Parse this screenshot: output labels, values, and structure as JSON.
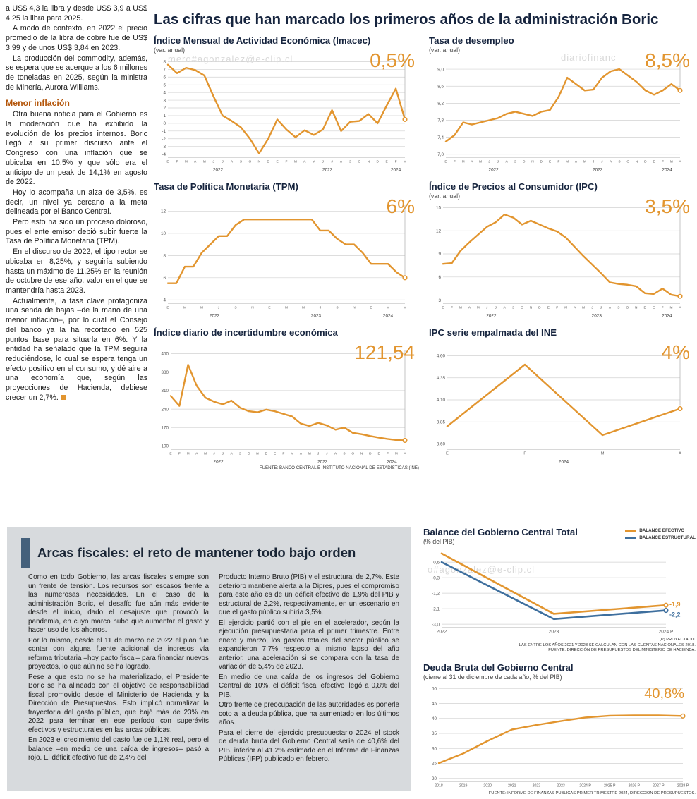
{
  "watermarks": {
    "w1": "mero#agonzalez@e-clip.cl",
    "w2": "diariofinanc",
    "w3": "ero#agonzalez@e-clip.cl",
    "w4": "o#agonzalez@e-clip.cl"
  },
  "headline": "Las cifras que han marcado los primeros años de la administración Boric",
  "source_note": "FUENTE: BANCO CENTRAL E INSTITUTO NACIONAL DE ESTADÍSTICAS (INE)",
  "left_article": {
    "p1": "a US$ 4,3 la libra y desde US$ 3,9 a US$ 4,25 la libra para 2025.",
    "p2": "A modo de contexto, en 2022 el precio promedio de la libra de cobre fue de US$ 3,99 y de unos US$ 3,84 en 2023.",
    "p3": "La producción del commodity, además, se espera que se acerque a los 6 millones de toneladas en 2025, según la ministra de Minería, Aurora Williams.",
    "subhead": "Menor inflación",
    "p4": "Otra buena noticia para el Gobierno es la moderación que ha exhibido la evolución de los precios internos. Boric llegó a su primer discurso ante el Congreso con una inflación que se ubicaba en 10,5% y que sólo era el anticipo de un peak de 14,1% en agosto de 2022.",
    "p5": "Hoy lo acompaña un alza de 3,5%, es decir, un nivel ya cercano a la meta delineada por el Banco Central.",
    "p6": "Pero esto ha sido un proceso doloroso, pues el ente emisor debió subir fuerte la Tasa de Política Monetaria (TPM).",
    "p7": "En el discurso de 2022, el tipo rector se ubicaba en 8,25%, y seguiría subiendo hasta un máximo de 11,25% en la reunión de octubre de ese año, valor en el que se mantendría hasta 2023.",
    "p8": "Actualmente, la tasa clave protagoniza una senda de bajas –de la mano de una menor inflación–, por lo cual el Consejo del banco ya la ha recortado en 525 puntos base para situarla en 6%. Y la entidad ha señalado que la TPM seguirá reduciéndose, lo cual se espera tenga un efecto positivo en el consumo, y dé aire a una economía que, según las proyecciones de Hacienda, debiese crecer un 2,7%."
  },
  "fiscal_article": {
    "title": "Arcas fiscales: el reto de mantener todo bajo orden",
    "c1p1": "Como en todo Gobierno, las arcas fiscales siempre son un frente de tensión. Los recursos son escasos frente a las numerosas necesidades. En el caso de la administración Boric, el desafío fue aún más evidente desde el inicio, dado el desajuste que provocó la pandemia, en cuyo marco hubo que aumentar el gasto y hacer uso de los ahorros.",
    "c1p2": "Por lo mismo, desde el 11 de marzo de 2022 el plan fue contar con alguna fuente adicional de ingresos vía reforma tributaria –hoy pacto fiscal– para financiar nuevos proyectos, lo que aún no se ha logrado.",
    "c1p3": "Pese a que esto no se ha materializado, el Presidente Boric se ha alineado con el objetivo de responsabilidad fiscal promovido desde el Ministerio de Hacienda y la Dirección de Presupuestos. Esto implicó normalizar la trayectoria del gasto público, que bajó más de 23% en 2022 para terminar en ese período con superávits efectivos y estructurales en las arcas públicas.",
    "c1p4": "En 2023 el crecimiento del gasto fue de 1,1% real, pero el balance –en medio de una caída de ingresos– pasó a rojo. El déficit efectivo fue de 2,4% del",
    "c2p1": "Producto Interno Bruto (PIB) y el estructural de 2,7%. Este deterioro mantiene alerta a la Dipres, pues el compromiso para este año es de un déficit efectivo de 1,9% del PIB y estructural de 2,2%, respectivamente, en un escenario en que el gasto público subiría 3,5%.",
    "c2p2": "El ejercicio partió con el pie en el acelerador, según la ejecución presupuestaria para el primer trimestre. Entre enero y marzo, los gastos totales del sector público se expandieron 7,7% respecto al mismo lapso del año anterior, una aceleración si se compara con la tasa de variación de 5,4% de 2023.",
    "c2p3": "En medio de una caída de los ingresos del Gobierno Central de 10%, el déficit fiscal efectivo llegó a 0,8% del PIB.",
    "c2p4": "Otro frente de preocupación de las autoridades es ponerle coto a la deuda pública, que ha aumentado en los últimos años.",
    "c2p5": "Para el cierre del ejercicio presupuestario 2024 el stock de deuda bruta del Gobierno Central sería de 40,6% del PIB, inferior al 41,2% estimado en el Informe de Finanzas Públicas (IFP) publicado en febrero."
  },
  "chart_data": [
    {
      "type": "line",
      "title": "Índice Mensual de Actividad Económica (Imacec)",
      "subtitle": "(var. anual)",
      "big_label": "0,5%",
      "ylim": [
        -4.4,
        8.4
      ],
      "yticks": [
        8,
        7,
        6,
        5,
        4,
        3,
        2,
        1,
        0,
        -1,
        -2,
        -3,
        -4
      ],
      "ytick_labels": [
        "8",
        "7",
        "6",
        "5",
        "4",
        "3",
        "2",
        "1",
        "0",
        "-1",
        "-2",
        "-3",
        "-4"
      ],
      "x_labels": [
        "E",
        "F",
        "M",
        "A",
        "M",
        "J",
        "J",
        "A",
        "S",
        "O",
        "N",
        "D",
        "E",
        "F",
        "M",
        "A",
        "M",
        "J",
        "J",
        "A",
        "S",
        "O",
        "N",
        "D",
        "E",
        "F",
        "M"
      ],
      "year_labels": [
        {
          "l": "2022",
          "a": 0,
          "b": 11
        },
        {
          "l": "2023",
          "a": 12,
          "b": 23
        },
        {
          "l": "2024",
          "a": 24,
          "b": 26
        }
      ],
      "end_line": true,
      "ml": 20,
      "mr": 18,
      "series": [
        {
          "name": "Imacec var. anual %",
          "color": "#E2952F",
          "w": 2.4,
          "marker": true,
          "values": [
            7.6,
            6.5,
            7.2,
            6.9,
            6.2,
            3.5,
            1.0,
            0.3,
            -0.5,
            -2.0,
            -3.9,
            -2.0,
            0.5,
            -0.8,
            -1.8,
            -0.9,
            -1.5,
            -0.8,
            1.7,
            -1.0,
            0.2,
            0.3,
            1.2,
            0.0,
            2.3,
            4.5,
            0.5
          ]
        }
      ]
    },
    {
      "type": "line",
      "title": "Tasa de desempleo",
      "subtitle": "(var. anual)",
      "big_label": "8,5%",
      "ylim": [
        6.93,
        9.25
      ],
      "yticks": [
        9.0,
        8.6,
        8.2,
        7.8,
        7.4,
        7.0
      ],
      "ytick_labels": [
        "9,0",
        "8,6",
        "8,2",
        "7,8",
        "7,4",
        "7,0"
      ],
      "x_labels": [
        "E",
        "F",
        "M",
        "A",
        "M",
        "J",
        "J",
        "A",
        "S",
        "O",
        "N",
        "D",
        "E",
        "F",
        "M",
        "A",
        "M",
        "J",
        "J",
        "A",
        "S",
        "O",
        "N",
        "D",
        "E",
        "F",
        "M",
        "A"
      ],
      "year_labels": [
        {
          "l": "2022",
          "a": 0,
          "b": 11
        },
        {
          "l": "2023",
          "a": 12,
          "b": 23
        },
        {
          "l": "2024",
          "a": 24,
          "b": 27
        }
      ],
      "end_line": true,
      "ml": 24,
      "mr": 18,
      "series": [
        {
          "name": "Tasa de desempleo %",
          "color": "#E2952F",
          "w": 2.4,
          "marker": true,
          "values": [
            7.3,
            7.45,
            7.75,
            7.7,
            7.75,
            7.8,
            7.85,
            7.95,
            8.0,
            7.95,
            7.9,
            8.0,
            8.04,
            8.35,
            8.8,
            8.65,
            8.5,
            8.52,
            8.8,
            8.95,
            9.0,
            8.85,
            8.7,
            8.5,
            8.4,
            8.5,
            8.65,
            8.5
          ]
        }
      ]
    },
    {
      "type": "line",
      "title": "Tasa de Política Monetaria (TPM)",
      "subtitle": "",
      "big_label": "6%",
      "ylim": [
        3.7,
        12.6
      ],
      "yticks": [
        12,
        10,
        8,
        6,
        4
      ],
      "ytick_labels": [
        "12",
        "10",
        "8",
        "6",
        "4"
      ],
      "x_labels": [
        "E",
        "",
        "M",
        "",
        "M",
        "",
        "J",
        "",
        "S",
        "",
        "N",
        "",
        "E",
        "",
        "M",
        "",
        "M",
        "",
        "J",
        "",
        "S",
        "",
        "N",
        "",
        "E",
        "",
        "M",
        "",
        "M"
      ],
      "year_labels": [
        {
          "l": "2022",
          "a": 0,
          "b": 11
        },
        {
          "l": "2023",
          "a": 12,
          "b": 23
        },
        {
          "l": "2024",
          "a": 24,
          "b": 28
        }
      ],
      "end_line": true,
      "ml": 20,
      "mr": 18,
      "series": [
        {
          "name": "TPM %",
          "color": "#E2952F",
          "w": 2.4,
          "marker": true,
          "values": [
            5.5,
            5.5,
            7.0,
            7.0,
            8.25,
            9.0,
            9.75,
            9.75,
            10.75,
            11.25,
            11.25,
            11.25,
            11.25,
            11.25,
            11.25,
            11.25,
            11.25,
            11.25,
            10.25,
            10.25,
            9.5,
            9.0,
            9.0,
            8.25,
            7.25,
            7.25,
            7.25,
            6.5,
            6.0
          ]
        }
      ]
    },
    {
      "type": "line",
      "title": "Índice de Precios al Consumidor (IPC)",
      "subtitle": "(var. anual)",
      "big_label": "3,5%",
      "ylim": [
        2.6,
        15.4
      ],
      "yticks": [
        15,
        12,
        9,
        6,
        3
      ],
      "ytick_labels": [
        "15",
        "12",
        "9",
        "6",
        "3"
      ],
      "x_labels": [
        "E",
        "F",
        "M",
        "A",
        "M",
        "J",
        "J",
        "A",
        "S",
        "O",
        "N",
        "D",
        "E",
        "F",
        "M",
        "A",
        "M",
        "J",
        "J",
        "A",
        "S",
        "O",
        "N",
        "D",
        "E",
        "F",
        "M",
        "A"
      ],
      "year_labels": [
        {
          "l": "2022",
          "a": 0,
          "b": 11
        },
        {
          "l": "2023",
          "a": 12,
          "b": 23
        },
        {
          "l": "2024",
          "a": 24,
          "b": 27
        }
      ],
      "end_line": true,
      "ml": 20,
      "mr": 18,
      "series": [
        {
          "name": "IPC var. anual %",
          "color": "#E2952F",
          "w": 2.4,
          "marker": true,
          "values": [
            7.7,
            7.8,
            9.4,
            10.5,
            11.5,
            12.5,
            13.1,
            14.1,
            13.7,
            12.8,
            13.3,
            12.8,
            12.3,
            11.9,
            11.1,
            9.9,
            8.7,
            7.6,
            6.5,
            5.3,
            5.1,
            5.0,
            4.8,
            3.9,
            3.8,
            4.5,
            3.7,
            3.5
          ]
        }
      ]
    },
    {
      "type": "line",
      "title": "Índice diario de incertidumbre económica",
      "subtitle": "",
      "big_label": "121,54",
      "ylim": [
        88,
        462
      ],
      "yticks": [
        450,
        380,
        310,
        240,
        170,
        100
      ],
      "ytick_labels": [
        "450",
        "380",
        "310",
        "240",
        "170",
        "100"
      ],
      "x_labels": [
        "E",
        "F",
        "M",
        "A",
        "M",
        "J",
        "J",
        "A",
        "S",
        "O",
        "N",
        "D",
        "E",
        "F",
        "M",
        "A",
        "M",
        "J",
        "J",
        "A",
        "S",
        "O",
        "N",
        "D",
        "E",
        "F",
        "M",
        "A"
      ],
      "year_labels": [
        {
          "l": "2022",
          "a": 0,
          "b": 11
        },
        {
          "l": "2023",
          "a": 12,
          "b": 23
        },
        {
          "l": "2024",
          "a": 24,
          "b": 27
        }
      ],
      "end_line": true,
      "ml": 24,
      "mr": 18,
      "series": [
        {
          "name": "Incertidumbre económica",
          "color": "#E2952F",
          "w": 2.4,
          "marker": true,
          "values": [
            290,
            252,
            408,
            328,
            283,
            268,
            258,
            272,
            245,
            232,
            228,
            238,
            232,
            222,
            212,
            185,
            176,
            188,
            178,
            162,
            170,
            150,
            145,
            138,
            132,
            127,
            123,
            121.54
          ]
        }
      ]
    },
    {
      "type": "line",
      "title": "IPC serie empalmada del INE",
      "subtitle": "",
      "big_label": "4%",
      "ylim": [
        3.54,
        4.66
      ],
      "yticks": [
        4.6,
        4.35,
        4.1,
        3.85,
        3.6
      ],
      "ytick_labels": [
        "4,60",
        "4,35",
        "4,10",
        "3,85",
        "3,60"
      ],
      "x_labels": [
        "E",
        "F",
        "M",
        "A"
      ],
      "xfs": 5.5,
      "year_labels": [
        {
          "l": "2024",
          "a": 0,
          "b": 3
        }
      ],
      "end_line": true,
      "ml": 26,
      "mr": 18,
      "series": [
        {
          "name": "IPC serie empalmada %",
          "color": "#E2952F",
          "w": 2.4,
          "marker": true,
          "values": [
            3.8,
            4.5,
            3.7,
            4.0
          ]
        }
      ]
    },
    {
      "type": "line",
      "title": "Balance del Gobierno Central Total",
      "subtitle": "(% del PIB)",
      "legend": [
        {
          "label": "BALANCE EFECTIVO",
          "color": "#E2952F"
        },
        {
          "label": "BALANCE ESTRUCTURAL",
          "color": "#3E6F9E"
        }
      ],
      "ylim": [
        -3.2,
        1.3
      ],
      "yticks": [
        0.6,
        -0.3,
        -1.2,
        -2.1,
        -3.0
      ],
      "ytick_labels": [
        "0,6",
        "-0,3",
        "-1,2",
        "-2,1",
        "-3,0"
      ],
      "x_labels": [
        "2022",
        "2023",
        "2024 P"
      ],
      "xfs": 6.5,
      "ml": 26,
      "mr": 40,
      "mb": 14,
      "series": [
        {
          "name": "Balance efectivo",
          "color": "#E2952F",
          "w": 2.6,
          "marker": true,
          "end_label": "-1,9",
          "end_dy": -1,
          "values": [
            1.1,
            -2.4,
            -1.9
          ]
        },
        {
          "name": "Balance estructural",
          "color": "#3E6F9E",
          "w": 2.6,
          "marker": true,
          "end_label": "-2,2",
          "end_dy": 6,
          "values": [
            0.6,
            -2.7,
            -2.2
          ]
        }
      ],
      "footnote1": "(P) PROYECTADO.",
      "footnote2": "LAS ENTRE LOS AÑOS 2021 Y 2023 SE CALCULAN CON LAS CUENTAS NACIONALES 2018.",
      "footnote3": "FUENTE: DIRECCIÓN DE PRESUPUESTOS DEL MINISTERIO DE HACIENDA."
    },
    {
      "type": "line",
      "title": "Deuda Bruta del Gobierno Central",
      "subtitle": "(cierre al 31 de diciembre de cada año, % del PIB)",
      "big_label": "40,8%",
      "ylim": [
        19,
        51
      ],
      "yticks": [
        50,
        45,
        40,
        35,
        30,
        25,
        20
      ],
      "ytick_labels": [
        "50",
        "45",
        "40",
        "35",
        "30",
        "25",
        "20"
      ],
      "x_labels": [
        "2018",
        "2019",
        "2020",
        "2021",
        "2022",
        "2023",
        "2024 P",
        "2025 P",
        "2026 P",
        "2027 P",
        "2028 P"
      ],
      "xfs": 5.2,
      "ml": 22,
      "mr": 16,
      "mb": 14,
      "series": [
        {
          "name": "Deuda bruta % del PIB",
          "color": "#E2952F",
          "w": 2.4,
          "marker": true,
          "values": [
            25.1,
            28.3,
            32.5,
            36.3,
            37.8,
            39.1,
            40.3,
            40.9,
            41.0,
            41.0,
            40.8
          ]
        }
      ],
      "footnote1": "FUENTE: INFORME DE FINANZAS PÚBLICAS PRIMER TRIMESTRE 2024, DIRECCIÓN DE PRESUPUESTOS."
    }
  ]
}
